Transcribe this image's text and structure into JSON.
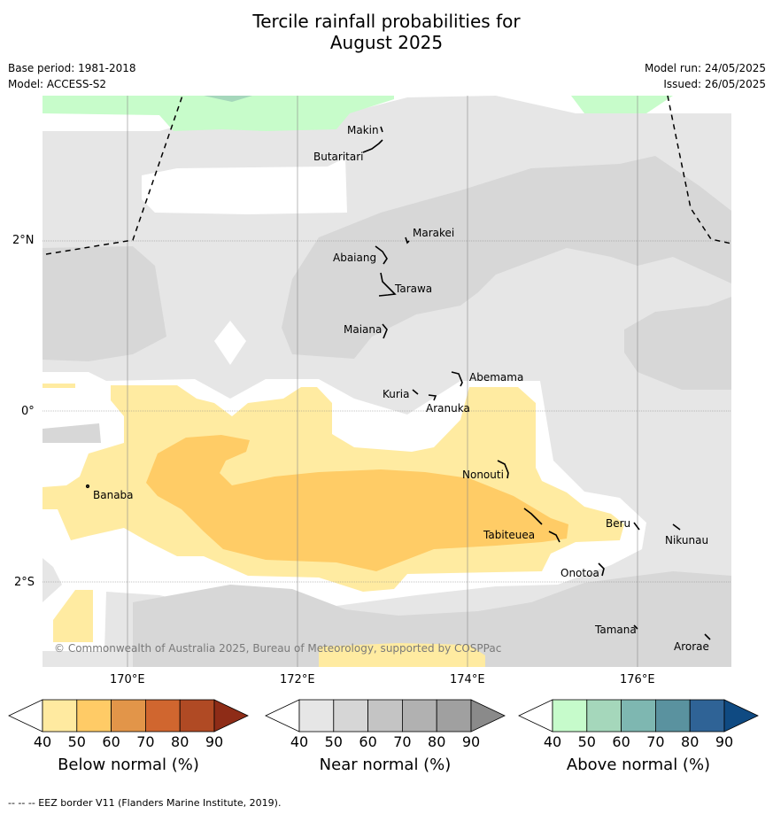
{
  "header": {
    "title_line1": "Tercile rainfall probabilities for",
    "title_line2": "August 2025",
    "base_period": "Base period: 1981-2018",
    "model": "Model: ACCESS-S2",
    "model_run": "Model run: 24/05/2025",
    "issued": "Issued: 26/05/2025"
  },
  "map": {
    "latitude_labels": [
      "2°N",
      "0°",
      "2°S"
    ],
    "longitude_labels": [
      "170°E",
      "172°E",
      "174°E",
      "176°E"
    ],
    "copyright": "© Commonwealth of Australia 2025, Bureau of Meteorology, supported by COSPPac",
    "places": [
      "Makin",
      "Butaritari",
      "Marakei",
      "Abaiang",
      "Tarawa",
      "Maiana",
      "Abemama",
      "Kuria",
      "Aranuka",
      "Nonouti",
      "Banaba",
      "Beru",
      "Nikunau",
      "Tabiteuea",
      "Onotoa",
      "Tamana",
      "Arorae"
    ],
    "colors": {
      "near_normal_light": "#e6e6e6",
      "near_normal_mid": "#d7d7d7",
      "below_50": "#ffeba1",
      "below_60": "#ffcc66",
      "above_50": "#c7fcca",
      "eez_border": "#000000"
    }
  },
  "colorbars": [
    {
      "title": "Below normal (%)",
      "ticks": [
        "40",
        "50",
        "60",
        "70",
        "80",
        "90"
      ],
      "colors": [
        "#ffffff",
        "#ffeaa0",
        "#ffcb66",
        "#e29549",
        "#d0662f",
        "#b04a24",
        "#8e2c17"
      ]
    },
    {
      "title": "Near normal (%)",
      "ticks": [
        "40",
        "50",
        "60",
        "70",
        "80",
        "90"
      ],
      "colors": [
        "#ffffff",
        "#e6e6e6",
        "#d6d6d6",
        "#c4c4c4",
        "#b1b1b1",
        "#a0a0a0",
        "#8a8a8a"
      ]
    },
    {
      "title": "Above normal (%)",
      "ticks": [
        "40",
        "50",
        "60",
        "70",
        "80",
        "90"
      ],
      "colors": [
        "#ffffff",
        "#c6fbcb",
        "#a5d7bb",
        "#7eb7b1",
        "#5a929f",
        "#2f6396",
        "#0f4a82"
      ]
    }
  ],
  "footer": {
    "legend": "--  --  -- EEZ border V11 (Flanders Marine Institute, 2019)."
  }
}
